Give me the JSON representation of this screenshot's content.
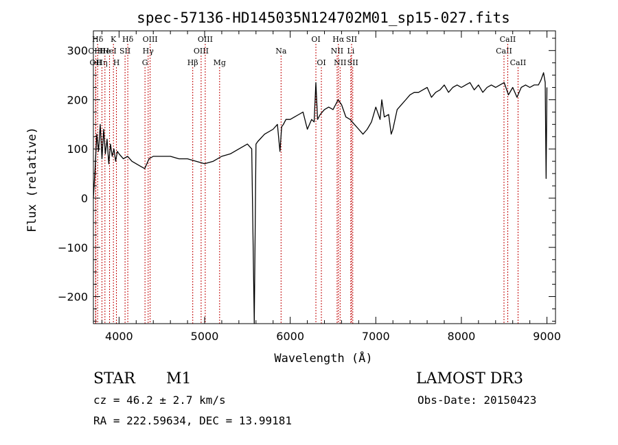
{
  "chart_data": {
    "type": "line",
    "title": "spec-57136-HD145035N124702M01_sp15-027.fits",
    "xlabel": "Wavelength (Å)",
    "ylabel": "Flux (relative)",
    "xlim": [
      3700,
      9100
    ],
    "ylim": [
      -255,
      340
    ],
    "xticks": [
      4000,
      5000,
      6000,
      7000,
      8000,
      9000
    ],
    "yticks": [
      -200,
      -100,
      0,
      100,
      200,
      300
    ],
    "series": [
      {
        "name": "flux",
        "x": [
          3700,
          3720,
          3740,
          3760,
          3780,
          3800,
          3820,
          3840,
          3860,
          3880,
          3900,
          3920,
          3940,
          3960,
          3980,
          4000,
          4050,
          4100,
          4150,
          4200,
          4250,
          4300,
          4350,
          4400,
          4500,
          4600,
          4700,
          4800,
          4900,
          5000,
          5100,
          5200,
          5300,
          5400,
          5500,
          5550,
          5580,
          5600,
          5620,
          5700,
          5800,
          5850,
          5880,
          5900,
          5920,
          5950,
          6000,
          6050,
          6100,
          6150,
          6200,
          6250,
          6280,
          6300,
          6320,
          6350,
          6400,
          6450,
          6500,
          6560,
          6600,
          6650,
          6700,
          6750,
          6800,
          6850,
          6900,
          6950,
          7000,
          7050,
          7070,
          7100,
          7150,
          7180,
          7200,
          7250,
          7300,
          7350,
          7400,
          7450,
          7500,
          7550,
          7600,
          7650,
          7700,
          7750,
          7800,
          7850,
          7900,
          7950,
          8000,
          8050,
          8100,
          8150,
          8200,
          8250,
          8300,
          8350,
          8400,
          8450,
          8500,
          8550,
          8600,
          8650,
          8700,
          8750,
          8800,
          8850,
          8900,
          8930,
          8960,
          8980,
          8990,
          9000
        ],
        "values": [
          0,
          60,
          130,
          95,
          150,
          80,
          140,
          90,
          120,
          70,
          110,
          85,
          100,
          75,
          95,
          90,
          80,
          85,
          75,
          70,
          65,
          60,
          80,
          85,
          85,
          85,
          80,
          80,
          75,
          70,
          75,
          85,
          90,
          100,
          110,
          100,
          -255,
          110,
          115,
          130,
          140,
          150,
          95,
          145,
          150,
          160,
          160,
          165,
          170,
          175,
          140,
          160,
          155,
          235,
          160,
          170,
          180,
          185,
          180,
          200,
          190,
          165,
          160,
          150,
          140,
          130,
          140,
          155,
          185,
          160,
          200,
          165,
          170,
          130,
          140,
          180,
          190,
          200,
          210,
          215,
          215,
          220,
          225,
          205,
          215,
          220,
          230,
          215,
          225,
          230,
          225,
          230,
          235,
          220,
          230,
          215,
          225,
          230,
          225,
          230,
          235,
          210,
          225,
          205,
          225,
          230,
          225,
          230,
          230,
          240,
          255,
          235,
          40,
          225
        ]
      }
    ],
    "lines": [
      {
        "x": 3750,
        "row": 1,
        "label": "Hδ"
      },
      {
        "x": 3727,
        "row": 2,
        "label": "OIII"
      },
      {
        "x": 3727,
        "row": 3,
        "label": "OII"
      },
      {
        "x": 3800,
        "row": 3,
        "label": "Hη"
      },
      {
        "x": 3835,
        "row": 2,
        "label": "He"
      },
      {
        "x": 3889,
        "row": 2,
        "label": "HeI"
      },
      {
        "x": 3934,
        "row": 1,
        "label": "K"
      },
      {
        "x": 3969,
        "row": 3,
        "label": "H"
      },
      {
        "x": 4070,
        "row": 2,
        "label": "SII"
      },
      {
        "x": 4102,
        "row": 1,
        "label": "Hδ"
      },
      {
        "x": 4303,
        "row": 3,
        "label": "G"
      },
      {
        "x": 4340,
        "row": 2,
        "label": "Hγ"
      },
      {
        "x": 4363,
        "row": 1,
        "label": "OIII"
      },
      {
        "x": 4861,
        "row": 3,
        "label": "Hβ"
      },
      {
        "x": 4959,
        "row": 2,
        "label": "OIII"
      },
      {
        "x": 5007,
        "row": 1,
        "label": "OIII"
      },
      {
        "x": 5175,
        "row": 3,
        "label": "Mg"
      },
      {
        "x": 5893,
        "row": 2,
        "label": "Na"
      },
      {
        "x": 6300,
        "row": 1,
        "label": "OI"
      },
      {
        "x": 6364,
        "row": 3,
        "label": "OI"
      },
      {
        "x": 6548,
        "row": 2,
        "label": "NII"
      },
      {
        "x": 6563,
        "row": 1,
        "label": "Hα"
      },
      {
        "x": 6583,
        "row": 3,
        "label": "NII"
      },
      {
        "x": 6708,
        "row": 2,
        "label": "Li"
      },
      {
        "x": 6717,
        "row": 1,
        "label": "SII"
      },
      {
        "x": 6731,
        "row": 3,
        "label": "SII"
      },
      {
        "x": 8498,
        "row": 2,
        "label": "CaII"
      },
      {
        "x": 8542,
        "row": 1,
        "label": "CaII"
      },
      {
        "x": 8662,
        "row": 3,
        "label": "CaII"
      }
    ]
  },
  "info": {
    "class": "STAR",
    "subclass": "M1",
    "survey": "LAMOST DR3",
    "cz": "cz = 46.2 ± 2.7 km/s",
    "obs_date": "Obs-Date: 20150423",
    "coords": "RA = 222.59634, DEC =  13.99181"
  },
  "colors": {
    "axis": "#000000",
    "spectrum": "#000000",
    "line_marker": "#c00000"
  }
}
